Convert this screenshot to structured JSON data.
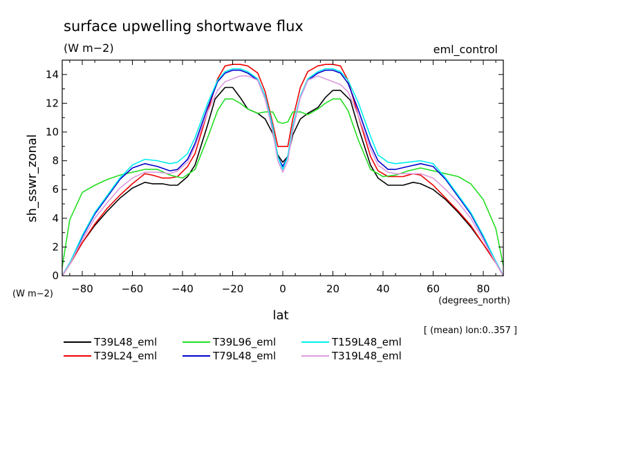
{
  "chart_data": {
    "type": "line",
    "title": "surface upwelling shortwave flux",
    "units_label": "(W m−2)",
    "experiment": "eml_control",
    "xlabel": "lat",
    "xunits": "(degrees_north)",
    "ylabel": "sh_sswr_zonal",
    "yunits": "(W m−2)",
    "note": "[ (mean) lon:0..357 ]",
    "xlim": [
      -88,
      88
    ],
    "ylim": [
      0,
      15
    ],
    "xticks": [
      -80,
      -60,
      -40,
      -20,
      0,
      20,
      40,
      60,
      80
    ],
    "yticks": [
      0,
      2,
      4,
      6,
      8,
      10,
      12,
      14
    ],
    "grid": false,
    "legend_position": "bottom",
    "series": [
      {
        "name": "T39L48_eml",
        "color": "#000000",
        "x": [
          -88,
          -85,
          -80,
          -75,
          -70,
          -65,
          -60,
          -55,
          -52,
          -48,
          -45,
          -42,
          -38,
          -35,
          -30,
          -27,
          -23,
          -20,
          -17,
          -14,
          -10,
          -7,
          -4,
          -2,
          0,
          2,
          4,
          7,
          10,
          14,
          17,
          20,
          23,
          27,
          30,
          35,
          38,
          42,
          45,
          48,
          52,
          55,
          60,
          65,
          70,
          75,
          80,
          85,
          88
        ],
        "values": [
          0,
          0.8,
          2.3,
          3.5,
          4.5,
          5.4,
          6.1,
          6.5,
          6.4,
          6.4,
          6.3,
          6.3,
          6.9,
          7.7,
          10.5,
          12.3,
          13.1,
          13.1,
          12.4,
          11.6,
          11.3,
          10.9,
          9.9,
          8.4,
          7.9,
          8.3,
          9.8,
          10.9,
          11.3,
          11.7,
          12.4,
          12.9,
          12.9,
          12.2,
          10.4,
          7.7,
          6.8,
          6.3,
          6.3,
          6.3,
          6.5,
          6.4,
          6.0,
          5.3,
          4.4,
          3.4,
          2.2,
          0.9,
          0
        ]
      },
      {
        "name": "T39L24_eml",
        "color": "#ee0000",
        "x": [
          -88,
          -85,
          -80,
          -75,
          -70,
          -65,
          -60,
          -55,
          -52,
          -48,
          -45,
          -42,
          -38,
          -35,
          -30,
          -26,
          -23,
          -20,
          -17,
          -14,
          -10,
          -7,
          -4,
          -2,
          0,
          2,
          4,
          7,
          10,
          14,
          17,
          20,
          23,
          26,
          30,
          35,
          38,
          42,
          45,
          48,
          52,
          55,
          60,
          65,
          70,
          75,
          80,
          85,
          88
        ],
        "values": [
          0,
          0.8,
          2.3,
          3.6,
          4.7,
          5.6,
          6.4,
          7.1,
          7.0,
          6.8,
          6.8,
          6.9,
          7.6,
          8.5,
          11.4,
          13.7,
          14.6,
          14.7,
          14.7,
          14.6,
          14.1,
          12.8,
          10.6,
          9.0,
          9.0,
          9.0,
          10.9,
          13.1,
          14.2,
          14.6,
          14.7,
          14.7,
          14.6,
          13.6,
          11.2,
          8.3,
          7.3,
          6.9,
          6.9,
          6.9,
          7.1,
          7.0,
          6.3,
          5.4,
          4.5,
          3.5,
          2.2,
          0.9,
          0
        ]
      },
      {
        "name": "T39L96_eml",
        "color": "#22dd22",
        "x": [
          -88,
          -85,
          -80,
          -75,
          -70,
          -65,
          -60,
          -55,
          -50,
          -45,
          -40,
          -35,
          -30,
          -26,
          -23,
          -20,
          -17,
          -14,
          -10,
          -7,
          -4,
          -2,
          0,
          2,
          4,
          7,
          10,
          14,
          17,
          20,
          23,
          26,
          30,
          35,
          40,
          45,
          50,
          55,
          60,
          65,
          70,
          75,
          80,
          85,
          88
        ],
        "values": [
          0.6,
          3.9,
          5.8,
          6.3,
          6.7,
          7.0,
          7.2,
          7.4,
          7.4,
          7.0,
          6.8,
          7.4,
          9.6,
          11.5,
          12.3,
          12.3,
          12.0,
          11.6,
          11.3,
          11.4,
          11.4,
          10.7,
          10.6,
          10.7,
          11.4,
          11.4,
          11.2,
          11.6,
          12.0,
          12.3,
          12.3,
          11.5,
          9.5,
          7.4,
          6.9,
          7.0,
          7.3,
          7.5,
          7.3,
          7.1,
          6.9,
          6.4,
          5.3,
          3.3,
          0.7
        ]
      },
      {
        "name": "T79L48_eml",
        "color": "#0000cc",
        "x": [
          -88,
          -85,
          -80,
          -75,
          -70,
          -65,
          -60,
          -55,
          -50,
          -45,
          -42,
          -38,
          -35,
          -30,
          -26,
          -23,
          -20,
          -17,
          -14,
          -10,
          -7,
          -4,
          -2,
          0,
          2,
          4,
          7,
          10,
          14,
          17,
          20,
          23,
          26,
          30,
          35,
          38,
          42,
          45,
          50,
          55,
          60,
          65,
          70,
          75,
          80,
          85,
          88
        ],
        "values": [
          0,
          0.9,
          2.7,
          4.3,
          5.5,
          6.7,
          7.5,
          7.8,
          7.6,
          7.3,
          7.4,
          8.1,
          9.2,
          11.7,
          13.5,
          14.1,
          14.3,
          14.3,
          14.1,
          13.6,
          12.3,
          10.2,
          8.3,
          7.6,
          8.3,
          10.3,
          12.4,
          13.6,
          14.1,
          14.3,
          14.3,
          14.1,
          13.4,
          11.6,
          9.1,
          8.0,
          7.4,
          7.4,
          7.6,
          7.8,
          7.6,
          6.7,
          5.5,
          4.3,
          2.7,
          1.0,
          0
        ]
      },
      {
        "name": "T159L48_eml",
        "color": "#00eeee",
        "x": [
          -88,
          -85,
          -80,
          -75,
          -70,
          -65,
          -60,
          -55,
          -50,
          -45,
          -42,
          -38,
          -35,
          -30,
          -26,
          -23,
          -20,
          -17,
          -14,
          -10,
          -7,
          -4,
          -2,
          0,
          2,
          4,
          7,
          10,
          14,
          17,
          20,
          23,
          26,
          30,
          35,
          38,
          42,
          45,
          50,
          55,
          60,
          65,
          70,
          75,
          80,
          85,
          88
        ],
        "values": [
          0,
          0.9,
          2.8,
          4.4,
          5.6,
          6.8,
          7.7,
          8.1,
          8.0,
          7.8,
          7.9,
          8.5,
          9.6,
          12.0,
          13.6,
          14.2,
          14.4,
          14.4,
          14.2,
          13.7,
          12.5,
          10.4,
          8.3,
          7.4,
          8.3,
          10.4,
          12.5,
          13.7,
          14.2,
          14.4,
          14.4,
          14.2,
          13.6,
          12.1,
          9.7,
          8.4,
          7.9,
          7.8,
          7.9,
          8.0,
          7.8,
          6.8,
          5.6,
          4.4,
          2.8,
          1.0,
          0
        ]
      },
      {
        "name": "T319L48_eml",
        "color": "#dd99dd",
        "x": [
          -88,
          -85,
          -80,
          -75,
          -70,
          -65,
          -60,
          -55,
          -50,
          -45,
          -42,
          -38,
          -35,
          -30,
          -26,
          -23,
          -20,
          -17,
          -14,
          -10,
          -7,
          -4,
          -2,
          0,
          2,
          4,
          7,
          10,
          14,
          17,
          20,
          23,
          26,
          30,
          35,
          38,
          42,
          45,
          50,
          55,
          60,
          65,
          70,
          75,
          80,
          85,
          88
        ],
        "values": [
          0,
          0.8,
          2.5,
          4.0,
          5.1,
          6.1,
          6.8,
          7.2,
          7.2,
          7.1,
          7.3,
          7.9,
          9.0,
          11.4,
          12.9,
          13.5,
          13.7,
          13.9,
          13.9,
          13.6,
          12.3,
          10.0,
          8.0,
          7.2,
          8.0,
          10.1,
          12.4,
          13.6,
          13.9,
          13.7,
          13.5,
          13.3,
          12.8,
          11.2,
          8.8,
          7.7,
          7.2,
          7.1,
          7.1,
          7.1,
          6.8,
          6.0,
          5.1,
          4.0,
          2.5,
          0.9,
          0
        ]
      }
    ]
  }
}
